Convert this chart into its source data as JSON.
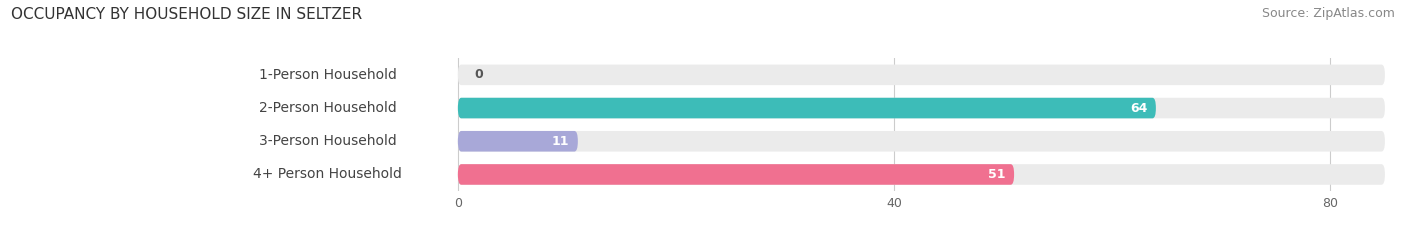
{
  "title": "OCCUPANCY BY HOUSEHOLD SIZE IN SELTZER",
  "source": "Source: ZipAtlas.com",
  "categories": [
    "1-Person Household",
    "2-Person Household",
    "3-Person Household",
    "4+ Person Household"
  ],
  "values": [
    0,
    64,
    11,
    51
  ],
  "bar_colors": [
    "#cc99bb",
    "#3dbcb8",
    "#a8a8d8",
    "#f07090"
  ],
  "bar_bg_color": "#ebebeb",
  "label_bg_color": "#ffffff",
  "xlim": [
    -22,
    85
  ],
  "xticks": [
    0,
    40,
    80
  ],
  "background_color": "#ffffff",
  "title_fontsize": 11,
  "source_fontsize": 9,
  "label_fontsize": 10,
  "value_fontsize": 9,
  "bar_height": 0.62,
  "rounding_size": 0.31
}
